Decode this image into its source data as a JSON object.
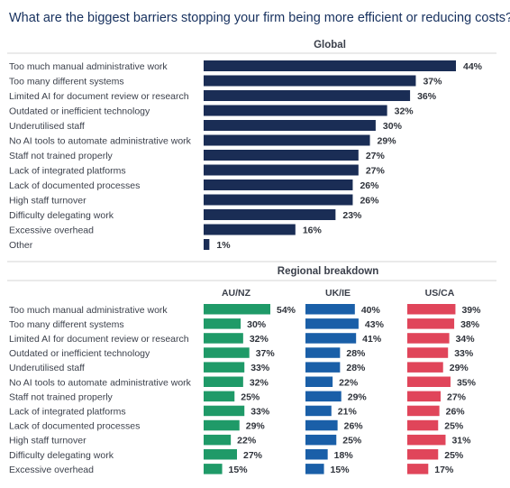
{
  "chart_data": [
    {
      "type": "bar",
      "orientation": "horizontal",
      "title": "What are the biggest barriers stopping your firm being more efficient or reducing costs?",
      "section_label": "Global",
      "categories": [
        "Too much manual administrative work",
        "Too many different systems",
        "Limited AI for document review or research",
        "Outdated or inefficient technology",
        "Underutilised staff",
        "No AI tools to automate administrative work",
        "Staff not trained properly",
        "Lack of integrated platforms",
        "Lack of documented processes",
        "High staff turnover",
        "Difficulty delegating work",
        "Excessive overhead",
        "Other"
      ],
      "values": [
        44,
        37,
        36,
        32,
        30,
        29,
        27,
        27,
        26,
        26,
        23,
        16,
        1
      ],
      "unit": "%",
      "color": "#1a2d55",
      "xlim": [
        0,
        44
      ]
    },
    {
      "type": "bar",
      "orientation": "horizontal",
      "section_label": "Regional breakdown",
      "categories": [
        "Too much manual administrative work",
        "Too many different systems",
        "Limited AI for document review or research",
        "Outdated or inefficient technology",
        "Underutilised staff",
        "No AI tools to automate administrative work",
        "Staff not trained properly",
        "Lack of integrated platforms",
        "Lack of documented processes",
        "High staff turnover",
        "Difficulty delegating work",
        "Excessive overhead"
      ],
      "series": [
        {
          "name": "AU/NZ",
          "color": "#1f9a68",
          "values": [
            54,
            30,
            32,
            37,
            33,
            32,
            25,
            33,
            29,
            22,
            27,
            15
          ]
        },
        {
          "name": "UK/IE",
          "color": "#1a5fa8",
          "values": [
            40,
            43,
            41,
            28,
            28,
            22,
            29,
            21,
            26,
            25,
            18,
            15
          ]
        },
        {
          "name": "US/CA",
          "color": "#e0455a",
          "values": [
            39,
            38,
            34,
            33,
            29,
            35,
            27,
            26,
            25,
            31,
            25,
            17
          ]
        }
      ],
      "unit": "%",
      "xlim": [
        0,
        54
      ]
    }
  ]
}
